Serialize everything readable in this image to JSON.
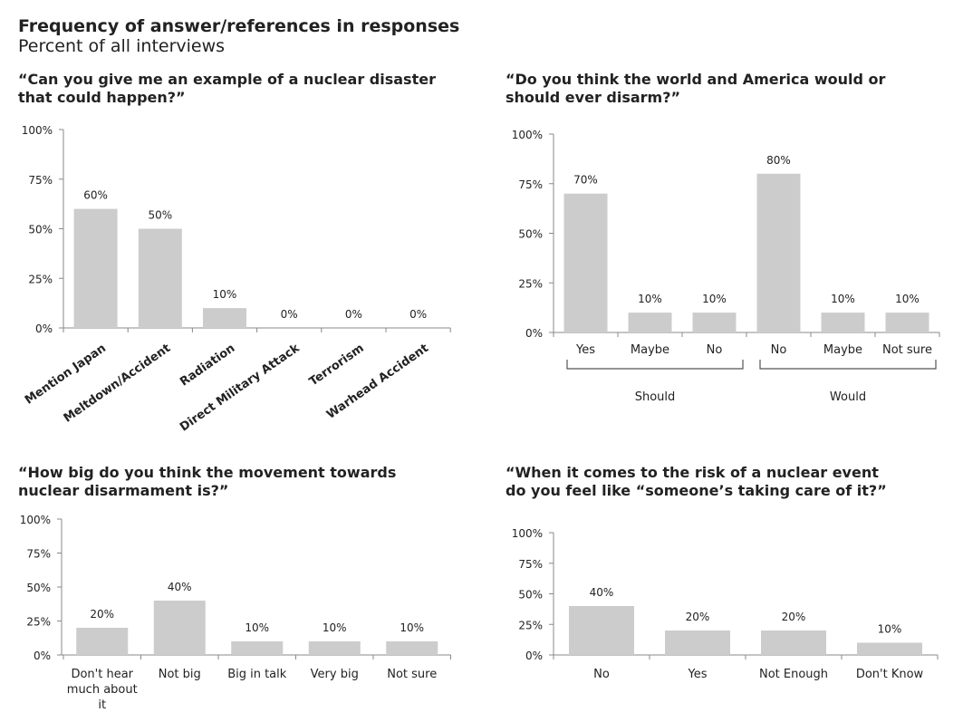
{
  "header": {
    "title": "Frequency of answer/references in responses",
    "subtitle": "Percent of all interviews"
  },
  "chart_data": [
    {
      "type": "bar",
      "title": "“Can you give me an example of a nuclear disaster that could happen?”",
      "categories": [
        "Mention Japan",
        "Meltdown/Accident",
        "Radiation",
        "Direct Military Attack",
        "Terrorism",
        "Warhead Accident"
      ],
      "values": [
        60,
        50,
        10,
        0,
        0,
        0
      ],
      "data_labels": [
        "60%",
        "50%",
        "10%",
        "0%",
        "0%",
        "0%"
      ],
      "yticks": [
        "0%",
        "25%",
        "50%",
        "75%",
        "100%"
      ],
      "ylim": [
        0,
        100
      ],
      "bar_color": "#cccccc"
    },
    {
      "type": "bar",
      "title": "“Do you think the world and America would or should ever disarm?”",
      "categories": [
        "Yes",
        "Maybe",
        "No",
        "No",
        "Maybe",
        "Not sure"
      ],
      "values": [
        70,
        10,
        10,
        80,
        10,
        10
      ],
      "data_labels": [
        "70%",
        "10%",
        "10%",
        "80%",
        "10%",
        "10%"
      ],
      "groups": [
        {
          "name": "Should",
          "range": [
            0,
            2
          ]
        },
        {
          "name": "Would",
          "range": [
            3,
            5
          ]
        }
      ],
      "yticks": [
        "0%",
        "25%",
        "50%",
        "75%",
        "100%"
      ],
      "ylim": [
        0,
        100
      ],
      "bar_color": "#cccccc"
    },
    {
      "type": "bar",
      "title": "“How big do you think the movement towards nuclear disarmament is?”",
      "categories": [
        "Don't hear much about it",
        "Not big",
        "Big in talk",
        "Very big",
        "Not sure"
      ],
      "values": [
        20,
        40,
        10,
        10,
        10
      ],
      "data_labels": [
        "20%",
        "40%",
        "10%",
        "10%",
        "10%"
      ],
      "yticks": [
        "0%",
        "25%",
        "50%",
        "75%",
        "100%"
      ],
      "ylim": [
        0,
        100
      ],
      "bar_color": "#cccccc"
    },
    {
      "type": "bar",
      "title": "“When it comes to the risk of a nuclear event do you feel like “someone’s taking care of it?”",
      "categories": [
        "No",
        "Yes",
        "Not Enough",
        "Don't Know"
      ],
      "values": [
        40,
        20,
        20,
        10
      ],
      "data_labels": [
        "40%",
        "20%",
        "20%",
        "10%"
      ],
      "yticks": [
        "0%",
        "25%",
        "50%",
        "75%",
        "100%"
      ],
      "ylim": [
        0,
        100
      ],
      "bar_color": "#cccccc"
    }
  ]
}
